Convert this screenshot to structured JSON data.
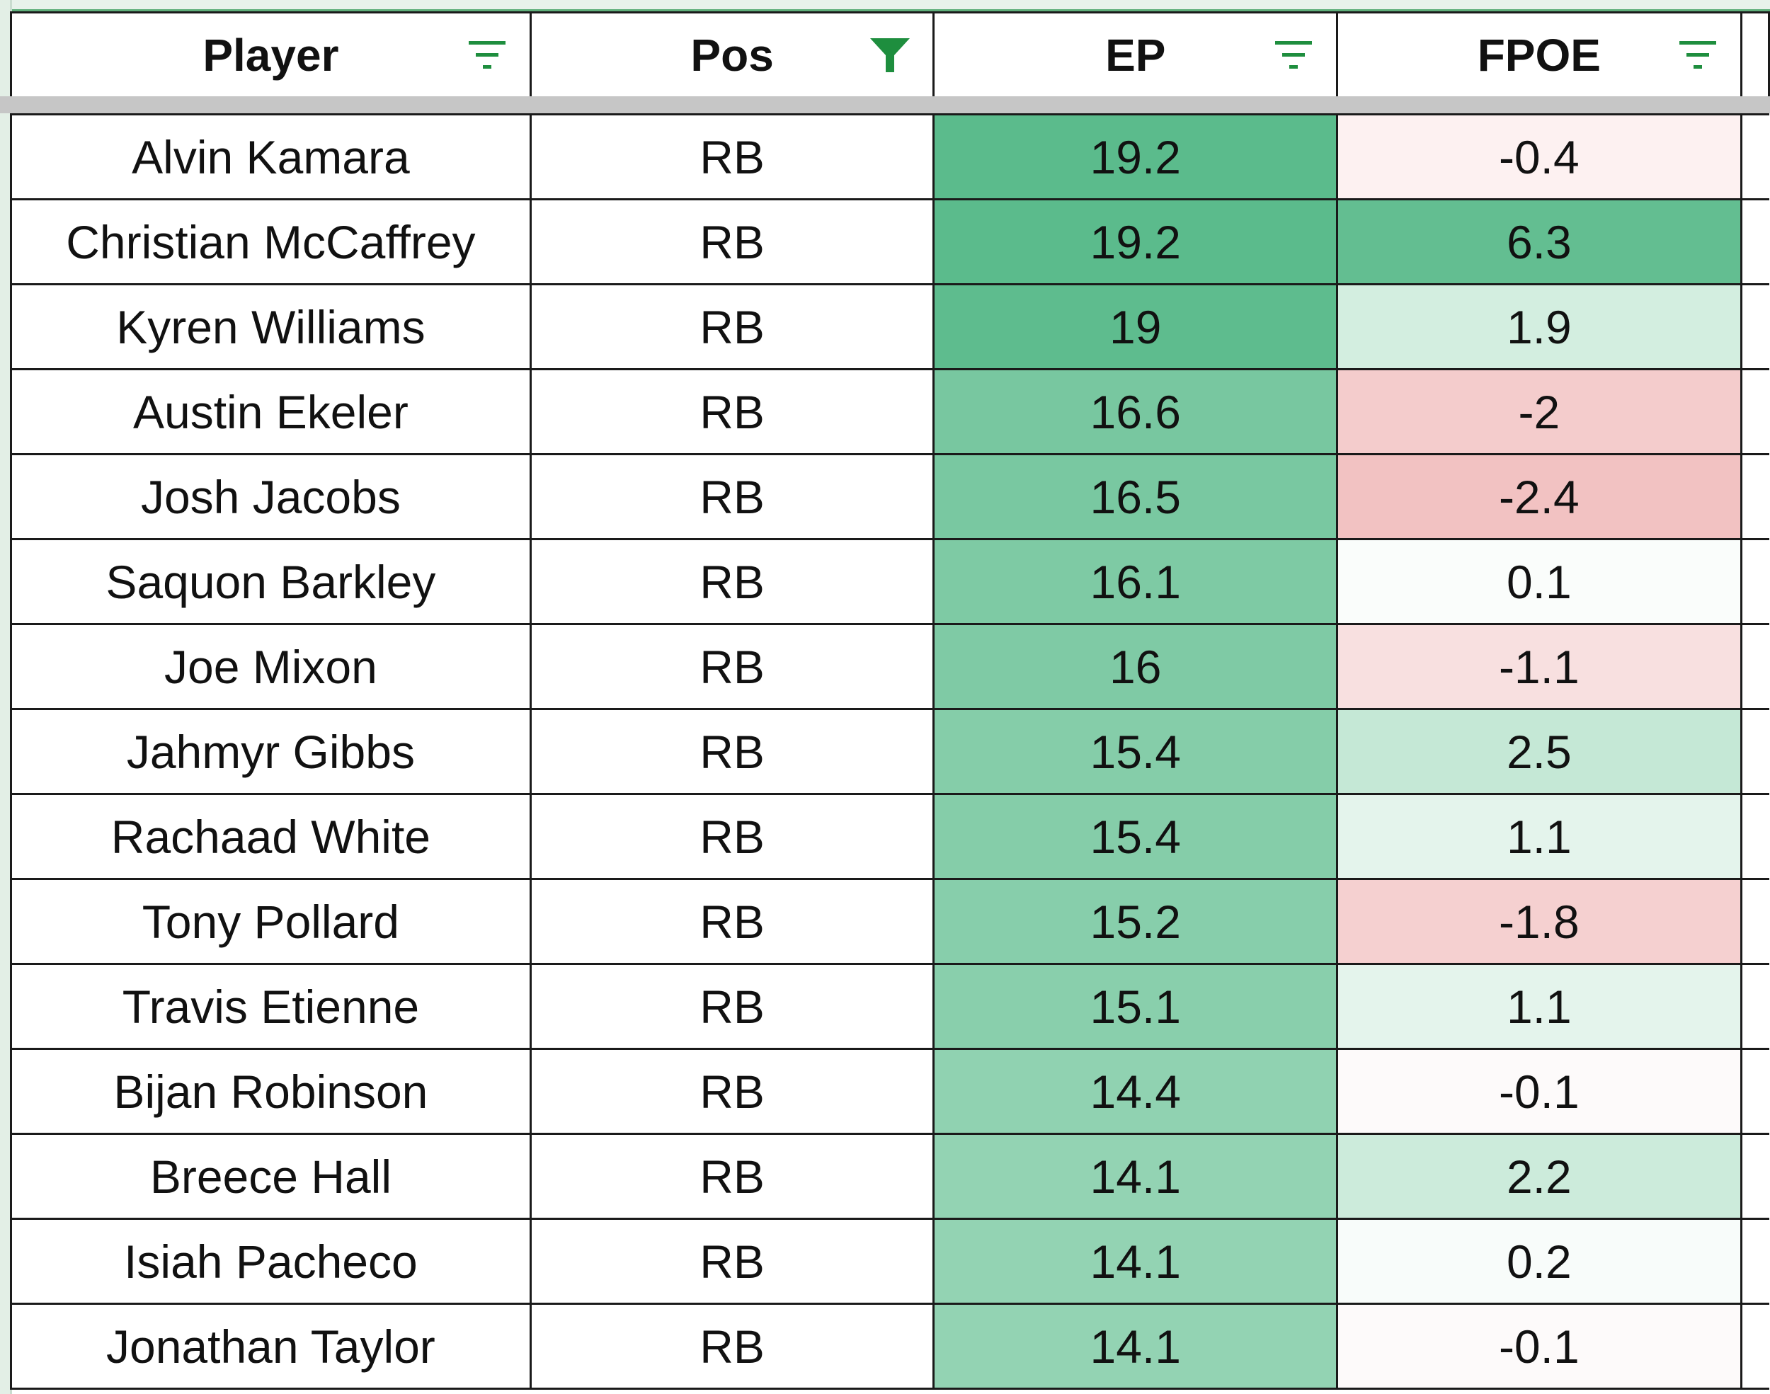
{
  "columns": [
    {
      "key": "player",
      "label": "Player",
      "filter_icon": "filter-lines-icon",
      "filter_active": false
    },
    {
      "key": "pos",
      "label": "Pos",
      "filter_icon": "filter-funnel-icon",
      "filter_active": true
    },
    {
      "key": "ep",
      "label": "EP",
      "filter_icon": "filter-lines-icon",
      "filter_active": false
    },
    {
      "key": "fpoe",
      "label": "FPOE",
      "filter_icon": "filter-lines-icon",
      "filter_active": false
    }
  ],
  "colors": {
    "filter_icon": "#1e8e3e",
    "grid_border": "#1a1a1a",
    "freeze_bar": "#c6c6c6"
  },
  "rows": [
    {
      "player": "Alvin Kamara",
      "pos": "RB",
      "ep": "19.2",
      "fpoe": "-0.4",
      "ep_color": "#5bbb8c",
      "fpoe_color": "#fdf1f1"
    },
    {
      "player": "Christian McCaffrey",
      "pos": "RB",
      "ep": "19.2",
      "fpoe": "6.3",
      "ep_color": "#5bbb8c",
      "fpoe_color": "#63be91"
    },
    {
      "player": "Kyren Williams",
      "pos": "RB",
      "ep": "19",
      "fpoe": "1.9",
      "ep_color": "#5ebc8e",
      "fpoe_color": "#d3eee0"
    },
    {
      "player": "Austin Ekeler",
      "pos": "RB",
      "ep": "16.6",
      "fpoe": "-2",
      "ep_color": "#78c7a0",
      "fpoe_color": "#f4cccc"
    },
    {
      "player": "Josh Jacobs",
      "pos": "RB",
      "ep": "16.5",
      "fpoe": "-2.4",
      "ep_color": "#79c8a1",
      "fpoe_color": "#f2c2c2"
    },
    {
      "player": "Saquon Barkley",
      "pos": "RB",
      "ep": "16.1",
      "fpoe": "0.1",
      "ep_color": "#7ecaa4",
      "fpoe_color": "#fafdfb"
    },
    {
      "player": "Joe Mixon",
      "pos": "RB",
      "ep": "16",
      "fpoe": "-1.1",
      "ep_color": "#7fcaa5",
      "fpoe_color": "#f8e0e0"
    },
    {
      "player": "Jahmyr Gibbs",
      "pos": "RB",
      "ep": "15.4",
      "fpoe": "2.5",
      "ep_color": "#85cda9",
      "fpoe_color": "#c5e8d6"
    },
    {
      "player": "Rachaad White",
      "pos": "RB",
      "ep": "15.4",
      "fpoe": "1.1",
      "ep_color": "#85cda9",
      "fpoe_color": "#e4f4ec"
    },
    {
      "player": "Tony Pollard",
      "pos": "RB",
      "ep": "15.2",
      "fpoe": "-1.8",
      "ep_color": "#87ceab",
      "fpoe_color": "#f5d0d0"
    },
    {
      "player": "Travis Etienne",
      "pos": "RB",
      "ep": "15.1",
      "fpoe": "1.1",
      "ep_color": "#89cfac",
      "fpoe_color": "#e4f4ec"
    },
    {
      "player": "Bijan Robinson",
      "pos": "RB",
      "ep": "14.4",
      "fpoe": "-0.1",
      "ep_color": "#90d2b1",
      "fpoe_color": "#fdfafa"
    },
    {
      "player": "Breece Hall",
      "pos": "RB",
      "ep": "14.1",
      "fpoe": "2.2",
      "ep_color": "#93d3b3",
      "fpoe_color": "#ccebdb"
    },
    {
      "player": "Isiah Pacheco",
      "pos": "RB",
      "ep": "14.1",
      "fpoe": "0.2",
      "ep_color": "#93d3b3",
      "fpoe_color": "#f8fcfa"
    },
    {
      "player": "Jonathan Taylor",
      "pos": "RB",
      "ep": "14.1",
      "fpoe": "-0.1",
      "ep_color": "#93d3b3",
      "fpoe_color": "#fdfafa"
    }
  ]
}
